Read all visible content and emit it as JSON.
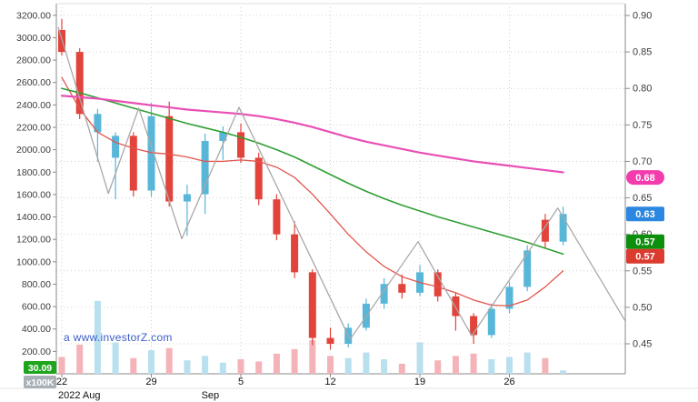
{
  "app": {
    "watermark": "a www.investorZ.com"
  },
  "chart_data": {
    "type": "candlestick",
    "title": "",
    "legend": "none",
    "grid": "dotted",
    "price_axis": {
      "side": "right",
      "min": 0.45,
      "max": 0.9,
      "ticks": [
        "0.90",
        "0.85",
        "0.80",
        "0.75",
        "0.70",
        "0.65",
        "0.60",
        "0.55",
        "0.50",
        "0.45"
      ]
    },
    "volume_axis": {
      "side": "left",
      "unit_label": "x100K",
      "ticks": [
        "3200.00",
        "3000.00",
        "2800.00",
        "2600.00",
        "2400.00",
        "2200.00",
        "2000.00",
        "1800.00",
        "1600.00",
        "1400.00",
        "1200.00",
        "1000.00",
        "800.00",
        "600.00",
        "400.00",
        "200.00"
      ]
    },
    "x_ticks": [
      {
        "index": 0,
        "label": "22"
      },
      {
        "index": 5,
        "label": "29"
      },
      {
        "index": 10,
        "label": "5"
      },
      {
        "index": 15,
        "label": "12"
      },
      {
        "index": 20,
        "label": "19"
      },
      {
        "index": 25,
        "label": "26"
      }
    ],
    "month_labels": [
      {
        "index": 0,
        "label": "2022 Aug"
      },
      {
        "index": 8,
        "label": "Sep"
      }
    ],
    "candles": [
      {
        "d": "08-22",
        "o": 0.88,
        "h": 0.895,
        "l": 0.845,
        "c": 0.85,
        "v": 150
      },
      {
        "d": "08-23",
        "o": 0.85,
        "h": 0.855,
        "l": 0.758,
        "c": 0.765,
        "v": 260
      },
      {
        "d": "08-24",
        "o": 0.74,
        "h": 0.772,
        "l": 0.7,
        "c": 0.765,
        "v": 650
      },
      {
        "d": "08-25",
        "o": 0.705,
        "h": 0.74,
        "l": 0.648,
        "c": 0.735,
        "v": 280
      },
      {
        "d": "08-26",
        "o": 0.735,
        "h": 0.74,
        "l": 0.652,
        "c": 0.66,
        "v": 140
      },
      {
        "d": "08-29",
        "o": 0.66,
        "h": 0.78,
        "l": 0.652,
        "c": 0.762,
        "v": 210
      },
      {
        "d": "08-30",
        "o": 0.762,
        "h": 0.782,
        "l": 0.638,
        "c": 0.645,
        "v": 230
      },
      {
        "d": "08-31",
        "o": 0.645,
        "h": 0.668,
        "l": 0.598,
        "c": 0.655,
        "v": 120
      },
      {
        "d": "09-01",
        "o": 0.655,
        "h": 0.738,
        "l": 0.628,
        "c": 0.728,
        "v": 160
      },
      {
        "d": "09-02",
        "o": 0.728,
        "h": 0.748,
        "l": 0.702,
        "c": 0.74,
        "v": 100
      },
      {
        "d": "09-05",
        "o": 0.74,
        "h": 0.752,
        "l": 0.698,
        "c": 0.705,
        "v": 130
      },
      {
        "d": "09-06",
        "o": 0.705,
        "h": 0.712,
        "l": 0.64,
        "c": 0.648,
        "v": 110
      },
      {
        "d": "09-07",
        "o": 0.648,
        "h": 0.655,
        "l": 0.592,
        "c": 0.6,
        "v": 180
      },
      {
        "d": "09-08",
        "o": 0.6,
        "h": 0.618,
        "l": 0.54,
        "c": 0.548,
        "v": 220
      },
      {
        "d": "09-09",
        "o": 0.548,
        "h": 0.552,
        "l": 0.448,
        "c": 0.458,
        "v": 300
      },
      {
        "d": "09-12",
        "o": 0.458,
        "h": 0.472,
        "l": 0.442,
        "c": 0.45,
        "v": 160
      },
      {
        "d": "09-13",
        "o": 0.45,
        "h": 0.478,
        "l": 0.445,
        "c": 0.472,
        "v": 140
      },
      {
        "d": "09-14",
        "o": 0.472,
        "h": 0.512,
        "l": 0.468,
        "c": 0.505,
        "v": 190
      },
      {
        "d": "09-15",
        "o": 0.505,
        "h": 0.54,
        "l": 0.498,
        "c": 0.532,
        "v": 130
      },
      {
        "d": "09-16",
        "o": 0.532,
        "h": 0.545,
        "l": 0.512,
        "c": 0.52,
        "v": 90
      },
      {
        "d": "09-19",
        "o": 0.52,
        "h": 0.558,
        "l": 0.515,
        "c": 0.548,
        "v": 280
      },
      {
        "d": "09-20",
        "o": 0.548,
        "h": 0.552,
        "l": 0.508,
        "c": 0.515,
        "v": 120
      },
      {
        "d": "09-21",
        "o": 0.515,
        "h": 0.52,
        "l": 0.468,
        "c": 0.488,
        "v": 160
      },
      {
        "d": "09-22",
        "o": 0.488,
        "h": 0.492,
        "l": 0.45,
        "c": 0.462,
        "v": 180
      },
      {
        "d": "09-23",
        "o": 0.462,
        "h": 0.505,
        "l": 0.458,
        "c": 0.498,
        "v": 130
      },
      {
        "d": "09-26",
        "o": 0.498,
        "h": 0.535,
        "l": 0.492,
        "c": 0.528,
        "v": 150
      },
      {
        "d": "09-27",
        "o": 0.528,
        "h": 0.585,
        "l": 0.522,
        "c": 0.578,
        "v": 190
      },
      {
        "d": "09-28",
        "o": 0.62,
        "h": 0.628,
        "l": 0.582,
        "c": 0.59,
        "v": 140
      },
      {
        "d": "09-29",
        "o": 0.59,
        "h": 0.638,
        "l": 0.585,
        "c": 0.628,
        "v": 30
      }
    ],
    "overlays": {
      "ma_slow": {
        "color": "#e94fb5",
        "width": 2.2,
        "values": [
          0.79,
          0.788,
          0.786,
          0.783,
          0.78,
          0.777,
          0.774,
          0.771,
          0.769,
          0.767,
          0.765,
          0.762,
          0.758,
          0.753,
          0.747,
          0.74,
          0.733,
          0.727,
          0.722,
          0.717,
          0.712,
          0.708,
          0.704,
          0.7,
          0.697,
          0.694,
          0.691,
          0.688,
          0.685
        ]
      },
      "ma_mid": {
        "color": "#2f9e33",
        "width": 1.6,
        "values": [
          0.8,
          0.794,
          0.787,
          0.78,
          0.773,
          0.766,
          0.759,
          0.752,
          0.746,
          0.74,
          0.733,
          0.725,
          0.716,
          0.706,
          0.694,
          0.682,
          0.67,
          0.659,
          0.649,
          0.64,
          0.632,
          0.624,
          0.617,
          0.61,
          0.603,
          0.596,
          0.589,
          0.581,
          0.573
        ]
      },
      "ma_fast": {
        "color": "#e2554d",
        "width": 1.3,
        "values": [
          0.815,
          0.772,
          0.74,
          0.726,
          0.718,
          0.712,
          0.71,
          0.706,
          0.7,
          0.7,
          0.702,
          0.7,
          0.692,
          0.678,
          0.655,
          0.628,
          0.6,
          0.576,
          0.556,
          0.542,
          0.534,
          0.528,
          0.52,
          0.51,
          0.503,
          0.502,
          0.51,
          0.528,
          0.55
        ]
      },
      "zigzag": {
        "color": "#a8a8a8",
        "width": 1.3,
        "points": [
          {
            "x": -0.2,
            "p": 0.884
          },
          {
            "x": 2.6,
            "p": 0.656
          },
          {
            "x": 4.3,
            "p": 0.773
          },
          {
            "x": 6.7,
            "p": 0.594
          },
          {
            "x": 9.9,
            "p": 0.774
          },
          {
            "x": 16.1,
            "p": 0.456
          },
          {
            "x": 19.9,
            "p": 0.59
          },
          {
            "x": 22.9,
            "p": 0.461
          },
          {
            "x": 27.7,
            "p": 0.636
          },
          {
            "x": 31.5,
            "p": 0.48
          }
        ]
      }
    },
    "badges": {
      "right": [
        {
          "label": "0.68",
          "price": 0.678,
          "color": "#f23cae",
          "pill": true
        },
        {
          "label": "0.63",
          "price": 0.628,
          "color": "#2b87e0",
          "pill": false
        },
        {
          "label": "0.57",
          "price": 0.59,
          "color": "#0c8f0c",
          "pill": false
        },
        {
          "label": "0.57",
          "price": 0.57,
          "color": "#dc3b30",
          "pill": false
        }
      ],
      "volume_value": {
        "label": "30.09",
        "color": "#1ea51e"
      },
      "volume_unit": {
        "label": "x100K",
        "color": "#a9b0b6"
      }
    },
    "colors": {
      "candle_up": "#58b6d8",
      "candle_down": "#e2433b",
      "volume_up": "#b8e0ef",
      "volume_down": "#f3b3b8",
      "grid": "#d0d0d0",
      "axis_line": "#8a8a8a",
      "axis_text": "#3c3c3c",
      "x_text": "#111111"
    }
  }
}
